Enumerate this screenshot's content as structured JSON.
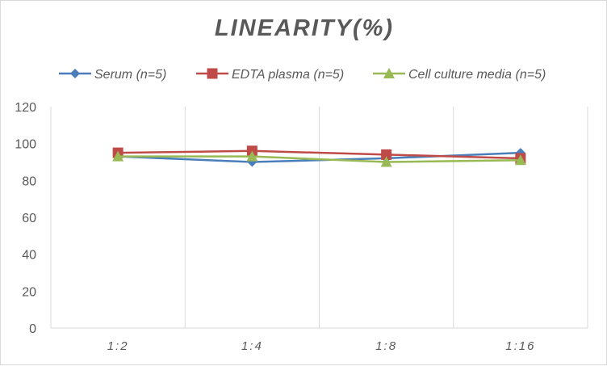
{
  "chart_data": {
    "type": "line",
    "title": "LINEARITY(%)",
    "categories": [
      "1:2",
      "1:4",
      "1:8",
      "1:16"
    ],
    "series": [
      {
        "name": "Serum (n=5)",
        "values": [
          93,
          90,
          92,
          95
        ],
        "color": "#4a7ebb",
        "marker": "diamond"
      },
      {
        "name": "EDTA plasma (n=5)",
        "values": [
          95,
          96,
          94,
          92
        ],
        "color": "#be4b48",
        "marker": "square"
      },
      {
        "name": "Cell culture media (n=5)",
        "values": [
          93,
          93,
          90,
          91
        ],
        "color": "#98b954",
        "marker": "triangle"
      }
    ],
    "ylim": [
      0,
      120
    ],
    "yticks": [
      0,
      20,
      40,
      60,
      80,
      100,
      120
    ],
    "grid": "vertical",
    "legend": "top"
  }
}
